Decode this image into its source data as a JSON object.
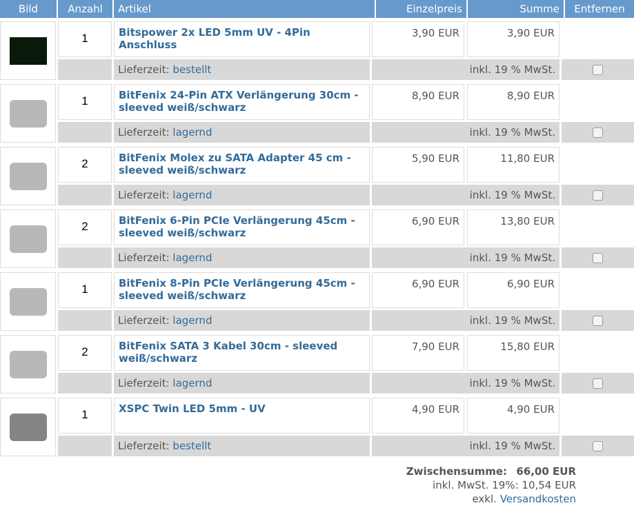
{
  "headers": {
    "bild": "Bild",
    "anzahl": "Anzahl",
    "artikel": "Artikel",
    "einzelpreis": "Einzelpreis",
    "summe": "Summe",
    "entfernen": "Entfernen"
  },
  "lieferzeit_label": "Lieferzeit:",
  "items": [
    {
      "qty": "1",
      "name": "Bitspower 2x LED 5mm UV - 4Pin Anschluss",
      "price": "3,90 EUR",
      "sum": "3,90 EUR",
      "status": "bestellt",
      "tax": "inkl. 19 % MwSt.",
      "img_color": "#0a1a0a"
    },
    {
      "qty": "1",
      "name": "BitFenix 24-Pin ATX Verlängerung 30cm - sleeved weiß/schwarz",
      "price": "8,90 EUR",
      "sum": "8,90 EUR",
      "status": "lagernd",
      "tax": "inkl. 19 % MwSt.",
      "img_color": "#888"
    },
    {
      "qty": "2",
      "name": "BitFenix Molex zu SATA Adapter 45 cm - sleeved weiß/schwarz",
      "price": "5,90 EUR",
      "sum": "11,80 EUR",
      "status": "lagernd",
      "tax": "inkl. 19 % MwSt.",
      "img_color": "#888"
    },
    {
      "qty": "2",
      "name": "BitFenix 6-Pin PCIe Verlängerung 45cm - sleeved weiß/schwarz",
      "price": "6,90 EUR",
      "sum": "13,80 EUR",
      "status": "lagernd",
      "tax": "inkl. 19 % MwSt.",
      "img_color": "#888"
    },
    {
      "qty": "1",
      "name": "BitFenix 8-Pin PCIe Verlängerung 45cm - sleeved weiß/schwarz",
      "price": "6,90 EUR",
      "sum": "6,90 EUR",
      "status": "lagernd",
      "tax": "inkl. 19 % MwSt.",
      "img_color": "#888"
    },
    {
      "qty": "2",
      "name": "BitFenix SATA 3 Kabel 30cm - sleeved weiß/schwarz",
      "price": "7,90 EUR",
      "sum": "15,80 EUR",
      "status": "lagernd",
      "tax": "inkl. 19 % MwSt.",
      "img_color": "#888"
    },
    {
      "qty": "1",
      "name": "XSPC Twin LED 5mm - UV",
      "price": "4,90 EUR",
      "sum": "4,90 EUR",
      "status": "bestellt",
      "tax": "inkl. 19 % MwSt.",
      "img_color": "#333"
    }
  ],
  "totals": {
    "subtotal_label": "Zwischensumme:",
    "subtotal": "66,00 EUR",
    "vat": "inkl. MwSt. 19%: 10,54 EUR",
    "shipping_prefix": "exkl.",
    "shipping_link": "Versandkosten"
  }
}
